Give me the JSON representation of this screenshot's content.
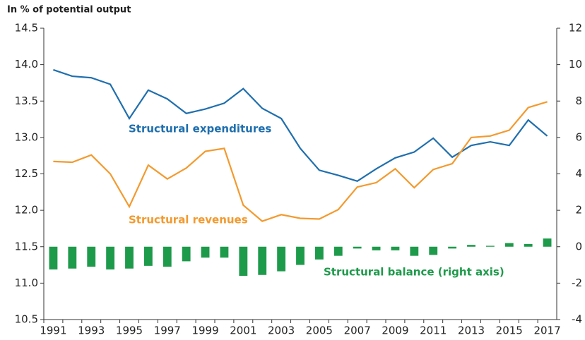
{
  "chart_data": {
    "type": "line",
    "y_label": "In % of potential output",
    "categories": [
      "1991",
      null,
      "1993",
      null,
      "1995",
      null,
      "1997",
      null,
      "1999",
      null,
      "2001",
      null,
      "2003",
      null,
      "2005",
      null,
      "2007",
      null,
      "2009",
      null,
      "2011",
      null,
      "2013",
      null,
      "2015",
      null,
      "2017"
    ],
    "series": [
      {
        "name": "Structural expenditures",
        "color": "#1f6fae",
        "type": "line",
        "values": [
          13.93,
          13.84,
          13.82,
          13.73,
          13.26,
          13.65,
          13.53,
          13.33,
          13.39,
          13.47,
          13.67,
          13.4,
          13.26,
          12.85,
          12.55,
          12.48,
          12.4,
          12.57,
          12.72,
          12.8,
          12.99,
          12.73,
          12.89,
          12.94,
          12.89,
          13.24,
          13.02
        ]
      },
      {
        "name": "Structural revenues",
        "color": "#f39a2e",
        "type": "line",
        "values": [
          12.67,
          12.66,
          12.76,
          12.5,
          12.05,
          12.62,
          12.43,
          12.58,
          12.81,
          12.85,
          12.07,
          11.85,
          11.94,
          11.89,
          11.88,
          12.01,
          12.32,
          12.38,
          12.57,
          12.31,
          12.56,
          12.64,
          13.0,
          13.02,
          13.1,
          13.41,
          13.49
        ]
      },
      {
        "name": "Structural balance (right axis)",
        "color": "#1e9a4b",
        "type": "bar",
        "axis": "y2",
        "values": [
          -1.25,
          -1.2,
          -1.1,
          -1.25,
          -1.2,
          -1.05,
          -1.1,
          -0.8,
          -0.6,
          -0.6,
          -1.6,
          -1.55,
          -1.35,
          -1.0,
          -0.7,
          -0.5,
          -0.1,
          -0.2,
          -0.2,
          -0.5,
          -0.45,
          -0.1,
          0.1,
          0.05,
          0.2,
          0.15,
          0.45
        ]
      }
    ],
    "ylim": [
      10.5,
      14.5
    ],
    "yticks": [
      10.5,
      {
        "value": 11,
        "label": "11.0"
      },
      11.5,
      {
        "value": 12,
        "label": "12.0"
      },
      12.5,
      {
        "value": 13,
        "label": "13.0"
      },
      13.5,
      {
        "value": 14,
        "label": "14.0"
      },
      14.5
    ],
    "y2lim": [
      -4,
      12
    ],
    "y2ticks": [
      -4,
      -2,
      0,
      2,
      4,
      6,
      8,
      10,
      12
    ],
    "grid": false
  }
}
